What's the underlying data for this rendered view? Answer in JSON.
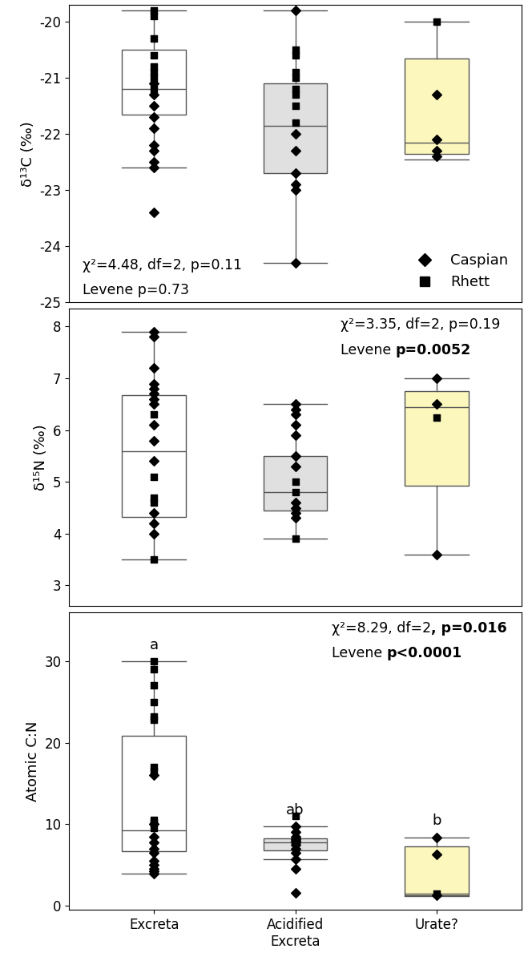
{
  "chart_data": [
    {
      "type": "box",
      "y_label": "δ¹³C (‰)",
      "categories": [
        "Excreta",
        "Acidified\nExcreta",
        "Urate?"
      ],
      "colors": [
        "#ffffff",
        "#e0e0e0",
        "#fcf7bd"
      ],
      "boxes": [
        {
          "whislo": -22.6,
          "q1": -21.65,
          "median": -21.2,
          "q3": -20.5,
          "whishi": -19.8
        },
        {
          "whislo": -24.3,
          "q1": -22.7,
          "median": -21.85,
          "q3": -21.1,
          "whishi": -19.8
        },
        {
          "whislo": -22.45,
          "q1": -22.35,
          "median": -22.15,
          "q3": -20.65,
          "whishi": -20.0
        }
      ],
      "series": [
        {
          "name": "Caspian",
          "marker": "diamond",
          "color": "#000000",
          "values": [
            [
              -21.1,
              -21.3,
              -21.5,
              -21.7,
              -21.9,
              -22.2,
              -22.3,
              -22.5,
              -22.6,
              -23.4
            ],
            [
              -19.8,
              -22.0,
              -22.3,
              -22.7,
              -22.9,
              -23.0,
              -24.3
            ],
            [
              -21.3,
              -22.1,
              -22.3,
              -22.4
            ]
          ]
        },
        {
          "name": "Rhett",
          "marker": "square",
          "color": "#000000",
          "values": [
            [
              -19.8,
              -19.9,
              -20.3,
              -20.6,
              -20.8,
              -20.9,
              -21.0,
              -21.2
            ],
            [
              -20.5,
              -20.6,
              -20.9,
              -21.0,
              -21.2,
              -21.3,
              -21.5,
              -21.8
            ],
            [
              -20.0
            ]
          ]
        }
      ],
      "stats": [
        [
          {
            "text": "χ²=4.48, df=2, p=0.11"
          }
        ],
        [
          {
            "text": "Levene p=0.73"
          }
        ]
      ],
      "ylim": [
        -25,
        -19.7
      ],
      "yticks": [
        -25,
        -24,
        -23,
        -22,
        -21,
        -20
      ],
      "legend": "lower right",
      "tick_labels": "y"
    },
    {
      "type": "box",
      "y_label": "δ¹⁵N (‰)",
      "categories": [
        "Excreta",
        "Acidified\nExcreta",
        "Urate?"
      ],
      "colors": [
        "#ffffff",
        "#e0e0e0",
        "#fcf7bd"
      ],
      "boxes": [
        {
          "whislo": 3.5,
          "q1": 4.33,
          "median": 5.6,
          "q3": 6.67,
          "whishi": 7.9
        },
        {
          "whislo": 3.9,
          "q1": 4.45,
          "median": 4.8,
          "q3": 5.5,
          "whishi": 6.5
        },
        {
          "whislo": 3.6,
          "q1": 4.92,
          "median": 6.45,
          "q3": 6.75,
          "whishi": 7.0
        }
      ],
      "series": [
        {
          "name": "Caspian",
          "marker": "diamond",
          "color": "#000000",
          "values": [
            [
              7.9,
              7.8,
              7.2,
              6.9,
              6.8,
              6.7,
              6.6,
              6.5,
              6.1,
              5.8,
              5.4,
              4.4,
              4.2,
              4.0
            ],
            [
              6.5,
              6.4,
              6.3,
              6.1,
              5.9,
              5.5,
              5.3,
              4.6,
              4.5,
              4.4,
              4.3
            ],
            [
              7.0,
              6.5,
              3.6
            ]
          ]
        },
        {
          "name": "Rhett",
          "marker": "square",
          "color": "#000000",
          "values": [
            [
              6.3,
              5.1,
              4.7,
              4.6,
              3.5
            ],
            [
              5.0,
              4.8,
              3.9
            ],
            [
              6.25
            ]
          ]
        }
      ],
      "stats": [
        [
          {
            "text": "χ²=3.35, df=2, p=0.19"
          }
        ],
        [
          {
            "text": "Levene "
          },
          {
            "text": "p=0.0052",
            "weight": "bold"
          }
        ]
      ],
      "ylim": [
        2.6,
        8.35
      ],
      "yticks": [
        3,
        4,
        5,
        6,
        7,
        8
      ],
      "tick_labels": "y"
    },
    {
      "type": "box",
      "y_label": "Atomic C:N",
      "categories": [
        "Excreta",
        "Acidified\nExcreta",
        "Urate?"
      ],
      "colors": [
        "#ffffff",
        "#e0e0e0",
        "#fcf7bd"
      ],
      "boxes": [
        {
          "whislo": 3.9,
          "q1": 6.7,
          "median": 9.2,
          "q3": 20.8,
          "whishi": 30
        },
        {
          "whislo": 5.7,
          "q1": 6.8,
          "median": 7.8,
          "q3": 8.3,
          "whishi": 9.7
        },
        {
          "whislo": 1.2,
          "q1": 1.3,
          "median": 1.5,
          "q3": 7.3,
          "whishi": 8.4
        }
      ],
      "group_letters": [
        "a",
        "ab",
        "b"
      ],
      "series": [
        {
          "name": "Caspian",
          "marker": "diamond",
          "color": "#000000",
          "values": [
            [
              16,
              10,
              8.5,
              7.8,
              7,
              6.5,
              5.5,
              5,
              4.5,
              4.2,
              3.9
            ],
            [
              9.7,
              9.0,
              8.5,
              8.2,
              8.0,
              7.8,
              7.5,
              7.0,
              6.5,
              5.7,
              4.5,
              1.6
            ],
            [
              8.4,
              6.3,
              1.3
            ]
          ]
        },
        {
          "name": "Rhett",
          "marker": "square",
          "color": "#000000",
          "values": [
            [
              30,
              29,
              27,
              25,
              23.2,
              22.8,
              17,
              16.5,
              10.5,
              10.2,
              9.5
            ],
            [
              11
            ],
            [
              1.5
            ]
          ]
        }
      ],
      "stats": [
        [
          {
            "text": "χ²=8.29, df=2"
          },
          {
            "text": ", p=0.016",
            "weight": "bold"
          }
        ],
        [
          {
            "text": "Levene "
          },
          {
            "text": "p<0.0001",
            "weight": "bold"
          }
        ]
      ],
      "ylim": [
        -0.5,
        36
      ],
      "yticks": [
        0,
        10,
        20,
        30
      ]
    }
  ]
}
